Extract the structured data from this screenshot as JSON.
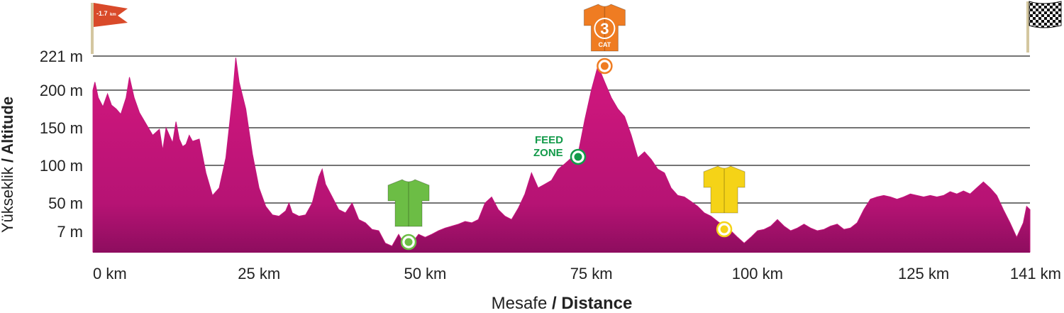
{
  "chart_data": {
    "type": "area",
    "xlabel": {
      "prefix": "Mesafe",
      "main": "/ Distance"
    },
    "ylabel": {
      "prefix": "Yükseklik",
      "main": "/ Altitude"
    },
    "xlim": [
      0,
      141
    ],
    "ylim": [
      0,
      221
    ],
    "x_ticks": [
      {
        "value": 0,
        "label": "0 km"
      },
      {
        "value": 25,
        "label": "25 km"
      },
      {
        "value": 50,
        "label": "50 km"
      },
      {
        "value": 75,
        "label": "75 km"
      },
      {
        "value": 100,
        "label": "100 km"
      },
      {
        "value": 125,
        "label": "125 km"
      },
      {
        "value": 141,
        "label": "141 km"
      }
    ],
    "y_ticks": [
      {
        "value": 7,
        "label": "7 m"
      },
      {
        "value": 50,
        "label": "50 m"
      },
      {
        "value": 100,
        "label": "100 m"
      },
      {
        "value": 150,
        "label": "150 m"
      },
      {
        "value": 200,
        "label": "200 m"
      },
      {
        "value": 221,
        "label": "221 m"
      }
    ],
    "gridlines_at": [
      50,
      100,
      150,
      200,
      221
    ],
    "series": [
      {
        "color": "#c3157c",
        "points": [
          [
            0,
            200
          ],
          [
            0.3,
            205
          ],
          [
            0.8,
            190
          ],
          [
            1.5,
            178
          ],
          [
            2.2,
            195
          ],
          [
            2.8,
            180
          ],
          [
            3.5,
            175
          ],
          [
            4.2,
            168
          ],
          [
            5.0,
            190
          ],
          [
            5.5,
            208
          ],
          [
            6.2,
            190
          ],
          [
            7.0,
            170
          ],
          [
            8.0,
            155
          ],
          [
            9.0,
            140
          ],
          [
            10.0,
            148
          ],
          [
            10.5,
            120
          ],
          [
            11.0,
            150
          ],
          [
            11.5,
            140
          ],
          [
            12.0,
            130
          ],
          [
            12.5,
            158
          ],
          [
            13.0,
            135
          ],
          [
            13.5,
            125
          ],
          [
            14.0,
            128
          ],
          [
            14.5,
            140
          ],
          [
            15.0,
            132
          ],
          [
            16.0,
            135
          ],
          [
            17.0,
            90
          ],
          [
            18.0,
            60
          ],
          [
            19.0,
            70
          ],
          [
            20.0,
            110
          ],
          [
            21.0,
            190
          ],
          [
            21.5,
            220
          ],
          [
            22.0,
            205
          ],
          [
            23.0,
            175
          ],
          [
            24.0,
            115
          ],
          [
            25.0,
            70
          ],
          [
            26.0,
            45
          ],
          [
            27.0,
            32
          ],
          [
            28.0,
            30
          ],
          [
            29.0,
            38
          ],
          [
            29.5,
            50
          ],
          [
            30.0,
            35
          ],
          [
            31.0,
            30
          ],
          [
            32.0,
            32
          ],
          [
            33.0,
            50
          ],
          [
            34.0,
            85
          ],
          [
            34.5,
            95
          ],
          [
            35.0,
            75
          ],
          [
            36.0,
            58
          ],
          [
            37.0,
            40
          ],
          [
            38.0,
            35
          ],
          [
            39.0,
            50
          ],
          [
            40.0,
            25
          ],
          [
            41.0,
            20
          ],
          [
            42.0,
            10
          ],
          [
            43.0,
            8
          ],
          [
            44.0,
            3
          ],
          [
            45.0,
            2
          ],
          [
            46.0,
            6
          ],
          [
            47.0,
            2
          ],
          [
            48.0,
            3
          ],
          [
            49.0,
            6
          ],
          [
            50.0,
            5
          ],
          [
            51.0,
            6
          ],
          [
            52.0,
            8
          ],
          [
            53.0,
            12
          ],
          [
            54.0,
            15
          ],
          [
            55.0,
            18
          ],
          [
            56.0,
            22
          ],
          [
            57.0,
            20
          ],
          [
            58.0,
            25
          ],
          [
            59.0,
            50
          ],
          [
            60.0,
            58
          ],
          [
            61.0,
            40
          ],
          [
            62.0,
            30
          ],
          [
            63.0,
            25
          ],
          [
            64.0,
            42
          ],
          [
            65.0,
            62
          ],
          [
            66.0,
            90
          ],
          [
            67.0,
            70
          ],
          [
            68.0,
            75
          ],
          [
            69.0,
            80
          ],
          [
            70.0,
            95
          ],
          [
            71.0,
            102
          ],
          [
            72.0,
            110
          ],
          [
            73.0,
            115
          ],
          [
            74.0,
            160
          ],
          [
            75.0,
            200
          ],
          [
            76.0,
            215
          ],
          [
            77.0,
            205
          ],
          [
            78.0,
            190
          ],
          [
            79.0,
            175
          ],
          [
            80.0,
            165
          ],
          [
            81.0,
            140
          ],
          [
            82.0,
            110
          ],
          [
            83.0,
            118
          ],
          [
            84.0,
            108
          ],
          [
            85.0,
            95
          ],
          [
            86.0,
            90
          ],
          [
            87.0,
            70
          ],
          [
            88.0,
            60
          ],
          [
            89.0,
            58
          ],
          [
            90.0,
            52
          ],
          [
            91.0,
            45
          ],
          [
            92.0,
            35
          ],
          [
            93.0,
            30
          ],
          [
            94.0,
            22
          ],
          [
            95.0,
            15
          ],
          [
            96.0,
            8
          ],
          [
            97.0,
            5
          ],
          [
            98.0,
            3
          ],
          [
            99.0,
            5
          ],
          [
            100.0,
            8
          ],
          [
            101.0,
            10
          ],
          [
            102.0,
            15
          ],
          [
            103.0,
            25
          ],
          [
            104.0,
            15
          ],
          [
            105.0,
            8
          ],
          [
            106.0,
            12
          ],
          [
            107.0,
            18
          ],
          [
            108.0,
            12
          ],
          [
            109.0,
            8
          ],
          [
            110.0,
            10
          ],
          [
            111.0,
            15
          ],
          [
            112.0,
            18
          ],
          [
            113.0,
            10
          ],
          [
            114.0,
            12
          ],
          [
            115.0,
            20
          ],
          [
            116.0,
            40
          ],
          [
            117.0,
            55
          ],
          [
            118.0,
            58
          ],
          [
            119.0,
            60
          ],
          [
            120.0,
            58
          ],
          [
            121.0,
            55
          ],
          [
            122.0,
            58
          ],
          [
            123.0,
            62
          ],
          [
            124.0,
            60
          ],
          [
            125.0,
            58
          ],
          [
            126.0,
            60
          ],
          [
            127.0,
            58
          ],
          [
            128.0,
            60
          ],
          [
            129.0,
            65
          ],
          [
            130.0,
            62
          ],
          [
            131.0,
            66
          ],
          [
            132.0,
            62
          ],
          [
            133.0,
            70
          ],
          [
            134.0,
            78
          ],
          [
            135.0,
            70
          ],
          [
            136.0,
            60
          ],
          [
            137.0,
            40
          ],
          [
            138.0,
            20
          ],
          [
            139.0,
            5
          ],
          [
            140.0,
            20
          ],
          [
            140.5,
            45
          ],
          [
            141,
            40
          ]
        ]
      }
    ],
    "markers": [
      {
        "kind": "flag",
        "text": "-1.7",
        "unit": "km",
        "color": "#d94a2a"
      },
      {
        "kind": "finish-flag"
      },
      {
        "kind": "jersey",
        "km": 47.5,
        "alt": 7,
        "color": "#6cbd45",
        "ring": "#6cbd45"
      },
      {
        "kind": "jersey",
        "km": 77,
        "alt": 221,
        "color": "#ef7c22",
        "ring": "#ef7c22",
        "number": "3",
        "category": "CAT"
      },
      {
        "kind": "jersey",
        "km": 95,
        "alt": 15,
        "color": "#f5d317",
        "ring": "#f5d317"
      },
      {
        "kind": "feed",
        "km": 73,
        "alt": 120,
        "line1": "FEED",
        "line2": "ZONE",
        "color": "#139a4a"
      }
    ]
  }
}
